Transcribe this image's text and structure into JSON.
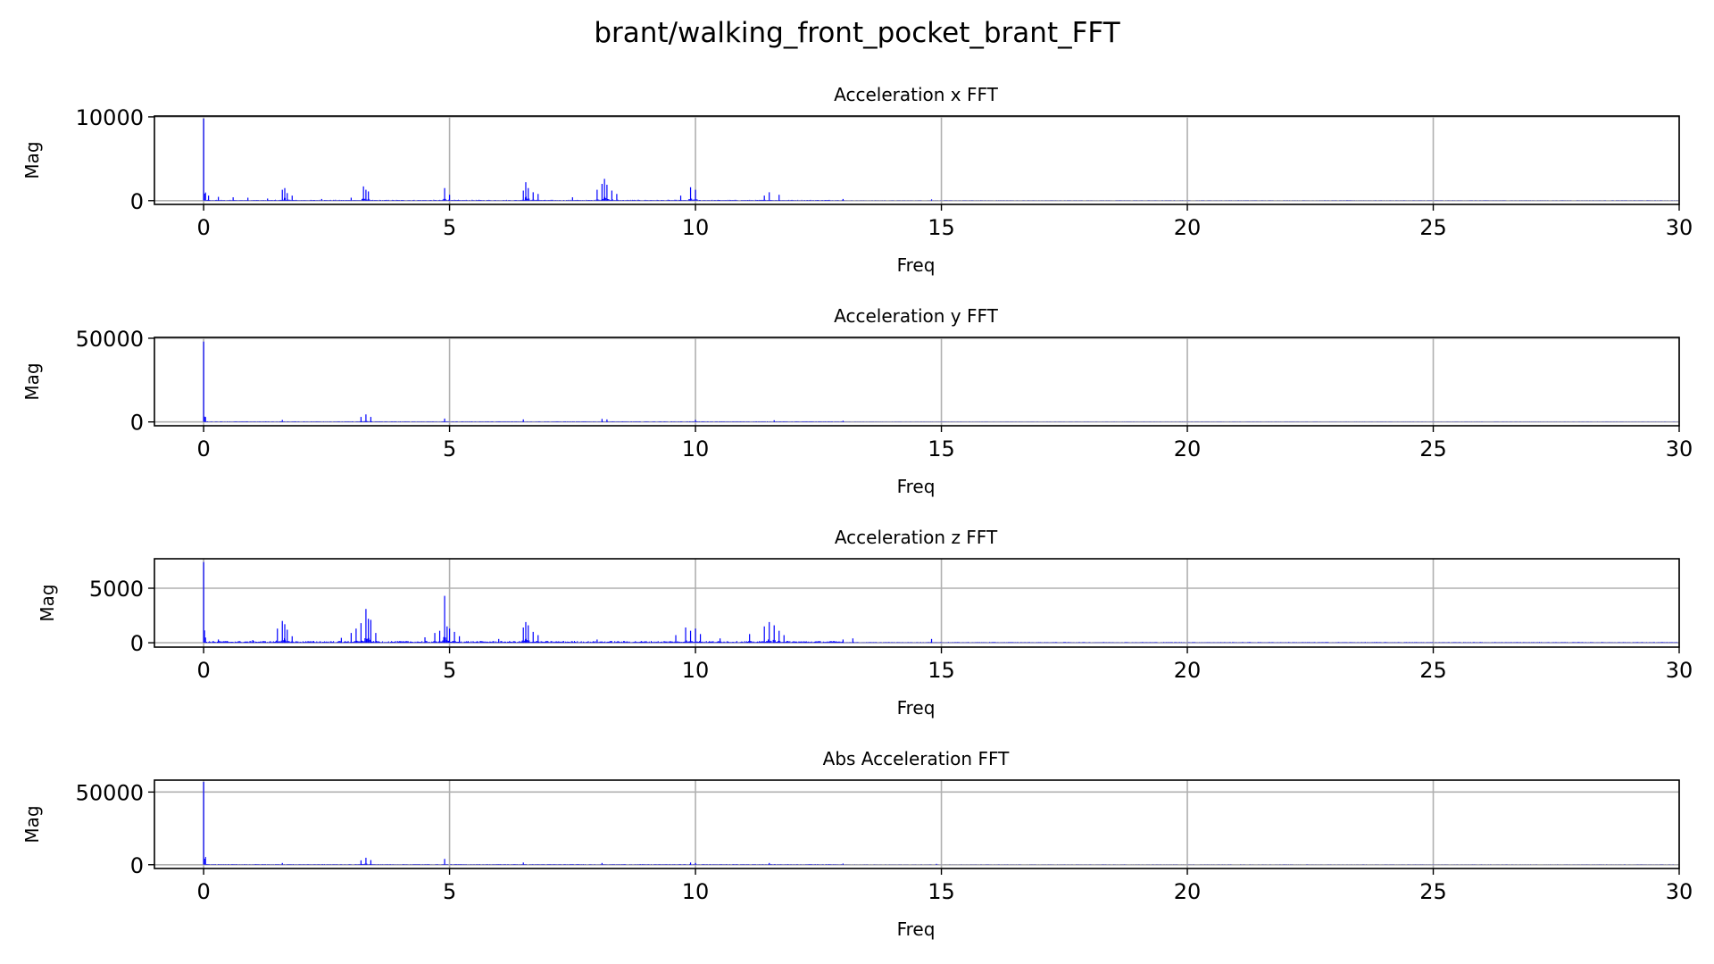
{
  "figure_title": "brant/walking_front_pocket_brant_FFT",
  "chart_data": [
    {
      "type": "line",
      "title": "Acceleration x FFT",
      "xlabel": "Freq",
      "ylabel": "Mag",
      "xlim": [
        -1,
        30
      ],
      "ylim": [
        -450,
        10100
      ],
      "xticks": [
        0,
        5,
        10,
        15,
        20,
        25,
        30
      ],
      "xtick_labels": [
        "0",
        "5",
        "10",
        "15",
        "20",
        "25",
        "30"
      ],
      "yticks": [
        0,
        10000
      ],
      "ytick_labels": [
        "0",
        "10000"
      ],
      "grid": true,
      "color": "#0000ff",
      "floor": 60,
      "series": [
        {
          "x": [
            0,
            0.1,
            0.3,
            0.6,
            0.9,
            1.3,
            1.6,
            1.65,
            1.7,
            1.8,
            2.4,
            3.0,
            3.25,
            3.3,
            3.35,
            4.9,
            5.0,
            6.5,
            6.55,
            6.6,
            6.7,
            6.8,
            7.5,
            8.0,
            8.1,
            8.15,
            8.2,
            8.3,
            8.4,
            9.7,
            9.9,
            10.0,
            11.4,
            11.5,
            11.7,
            13.0,
            14.8
          ],
          "y": [
            9800,
            600,
            450,
            400,
            350,
            250,
            1300,
            1500,
            900,
            600,
            200,
            350,
            1700,
            1300,
            1100,
            1500,
            700,
            1200,
            2200,
            1500,
            1000,
            800,
            400,
            1300,
            2000,
            2600,
            1900,
            1200,
            800,
            600,
            1600,
            1300,
            600,
            1000,
            700,
            200,
            150
          ]
        }
      ]
    },
    {
      "type": "line",
      "title": "Acceleration y FFT",
      "xlabel": "Freq",
      "ylabel": "Mag",
      "xlim": [
        -1,
        30
      ],
      "ylim": [
        -2300,
        50500
      ],
      "xticks": [
        0,
        5,
        10,
        15,
        20,
        25,
        30
      ],
      "xtick_labels": [
        "0",
        "5",
        "10",
        "15",
        "20",
        "25",
        "30"
      ],
      "yticks": [
        0,
        50000
      ],
      "ytick_labels": [
        "0",
        "50000"
      ],
      "grid": true,
      "color": "#0000ff",
      "floor": 200,
      "series": [
        {
          "x": [
            0,
            1.6,
            3.2,
            3.3,
            3.4,
            4.9,
            6.5,
            8.1,
            8.2,
            10.0,
            11.6,
            13.0
          ],
          "y": [
            48000,
            1200,
            3000,
            4500,
            3000,
            2000,
            1500,
            1800,
            1500,
            1200,
            1000,
            700
          ]
        }
      ]
    },
    {
      "type": "line",
      "title": "Acceleration z FFT",
      "xlabel": "Freq",
      "ylabel": "Mag",
      "xlim": [
        -1,
        30
      ],
      "ylim": [
        -400,
        7700
      ],
      "xticks": [
        0,
        5,
        10,
        15,
        20,
        25,
        30
      ],
      "xtick_labels": [
        "0",
        "5",
        "10",
        "15",
        "20",
        "25",
        "30"
      ],
      "yticks": [
        0,
        5000
      ],
      "ytick_labels": [
        "0",
        "5000"
      ],
      "grid": true,
      "color": "#0000ff",
      "floor": 100,
      "series": [
        {
          "x": [
            0,
            0.3,
            1.0,
            1.5,
            1.6,
            1.65,
            1.7,
            1.8,
            2.8,
            3.0,
            3.1,
            3.2,
            3.3,
            3.35,
            3.4,
            3.5,
            4.5,
            4.7,
            4.8,
            4.9,
            4.95,
            5.0,
            5.1,
            5.2,
            6.0,
            6.5,
            6.55,
            6.6,
            6.7,
            6.8,
            8.0,
            9.6,
            9.8,
            9.9,
            10.0,
            10.1,
            10.5,
            11.1,
            11.4,
            11.5,
            11.6,
            11.7,
            11.8,
            13.0,
            13.2,
            14.8
          ],
          "y": [
            7400,
            300,
            250,
            1300,
            2000,
            1700,
            1200,
            600,
            450,
            900,
            1300,
            1800,
            3100,
            2200,
            2100,
            900,
            500,
            900,
            1100,
            4300,
            1500,
            1300,
            1000,
            600,
            350,
            1400,
            1900,
            1600,
            1000,
            700,
            300,
            700,
            1400,
            1100,
            1300,
            800,
            400,
            800,
            1500,
            1900,
            1600,
            1100,
            700,
            300,
            400,
            350
          ]
        }
      ]
    },
    {
      "type": "line",
      "title": "Abs Acceleration FFT",
      "xlabel": "Freq",
      "ylabel": "Mag",
      "xlim": [
        -1,
        30
      ],
      "ylim": [
        -2600,
        58200
      ],
      "xticks": [
        0,
        5,
        10,
        15,
        20,
        25,
        30
      ],
      "xtick_labels": [
        "0",
        "5",
        "10",
        "15",
        "20",
        "25",
        "30"
      ],
      "yticks": [
        0,
        50000
      ],
      "ytick_labels": [
        "0",
        "50000"
      ],
      "grid": true,
      "color": "#0000ff",
      "floor": 250,
      "series": [
        {
          "x": [
            0,
            1.6,
            3.2,
            3.3,
            3.4,
            4.9,
            6.5,
            8.1,
            9.9,
            10.0,
            11.5,
            13.0,
            14.9
          ],
          "y": [
            57000,
            1200,
            3000,
            4800,
            3200,
            4000,
            1500,
            1200,
            1500,
            1200,
            1200,
            800,
            600
          ]
        }
      ]
    }
  ]
}
